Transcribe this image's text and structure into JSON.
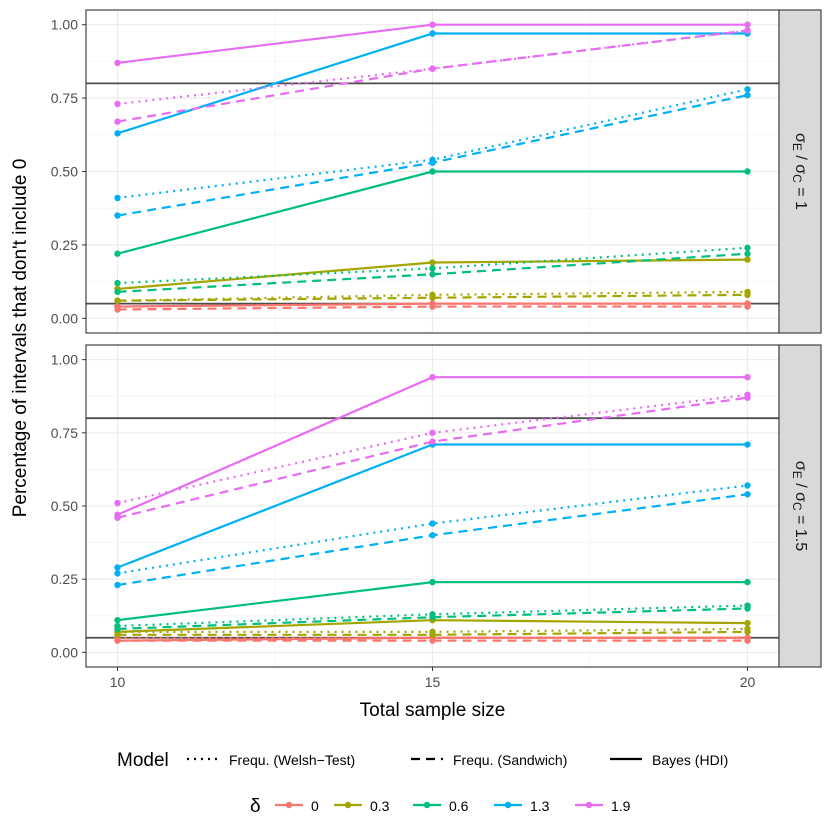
{
  "chart_data": {
    "type": "line",
    "ylabel": "Percentage of intervals that don't include 0",
    "xlabel": "Total sample size",
    "x": [
      10,
      15,
      20
    ],
    "x_ticks": [
      "10",
      "15",
      "20"
    ],
    "xlim": [
      9.5,
      20.5
    ],
    "ylim": [
      -0.05,
      1.05
    ],
    "y_ticks": [
      "0.00",
      "0.25",
      "0.50",
      "0.75",
      "1.00"
    ],
    "reference_lines": [
      0.05,
      0.8
    ],
    "grid": true,
    "legend_position": "bottom",
    "model_legend": {
      "title": "Model",
      "items": [
        {
          "label": "Frequ. (Welsh−Test)",
          "style": "dotted"
        },
        {
          "label": "Frequ. (Sandwich)",
          "style": "dashed"
        },
        {
          "label": "Bayes (HDI)",
          "style": "solid"
        }
      ]
    },
    "delta_legend": {
      "title": "δ",
      "items": [
        {
          "label": "0",
          "color": "#F8766D"
        },
        {
          "label": "0.3",
          "color": "#A3A500"
        },
        {
          "label": "0.6",
          "color": "#00BF7D"
        },
        {
          "label": "1.3",
          "color": "#00B0F6"
        },
        {
          "label": "1.9",
          "color": "#E76BF3"
        }
      ]
    },
    "panels": [
      {
        "strip_main": "σ",
        "strip_sub1": "E",
        "strip_mid": " / σ",
        "strip_sub2": "C",
        "strip_end": " = 1",
        "series": [
          {
            "delta": "0",
            "model": "Frequ. (Welsh−Test)",
            "values": [
              0.04,
              0.05,
              0.05
            ]
          },
          {
            "delta": "0",
            "model": "Frequ. (Sandwich)",
            "values": [
              0.03,
              0.04,
              0.04
            ]
          },
          {
            "delta": "0",
            "model": "Bayes (HDI)",
            "values": [
              0.04,
              0.05,
              0.05
            ]
          },
          {
            "delta": "0.3",
            "model": "Frequ. (Welsh−Test)",
            "values": [
              0.06,
              0.08,
              0.09
            ]
          },
          {
            "delta": "0.3",
            "model": "Frequ. (Sandwich)",
            "values": [
              0.06,
              0.07,
              0.08
            ]
          },
          {
            "delta": "0.3",
            "model": "Bayes (HDI)",
            "values": [
              0.1,
              0.19,
              0.2
            ]
          },
          {
            "delta": "0.6",
            "model": "Frequ. (Welsh−Test)",
            "values": [
              0.12,
              0.17,
              0.24
            ]
          },
          {
            "delta": "0.6",
            "model": "Frequ. (Sandwich)",
            "values": [
              0.09,
              0.15,
              0.22
            ]
          },
          {
            "delta": "0.6",
            "model": "Bayes (HDI)",
            "values": [
              0.22,
              0.5,
              0.5
            ]
          },
          {
            "delta": "1.3",
            "model": "Frequ. (Welsh−Test)",
            "values": [
              0.41,
              0.54,
              0.78
            ]
          },
          {
            "delta": "1.3",
            "model": "Frequ. (Sandwich)",
            "values": [
              0.35,
              0.53,
              0.76
            ]
          },
          {
            "delta": "1.3",
            "model": "Bayes (HDI)",
            "values": [
              0.63,
              0.97,
              0.97
            ]
          },
          {
            "delta": "1.9",
            "model": "Frequ. (Welsh−Test)",
            "values": [
              0.73,
              0.85,
              0.98
            ]
          },
          {
            "delta": "1.9",
            "model": "Frequ. (Sandwich)",
            "values": [
              0.67,
              0.85,
              0.98
            ]
          },
          {
            "delta": "1.9",
            "model": "Bayes (HDI)",
            "values": [
              0.87,
              1.0,
              1.0
            ]
          }
        ]
      },
      {
        "strip_main": "σ",
        "strip_sub1": "E",
        "strip_mid": " / σ",
        "strip_sub2": "C",
        "strip_end": " = 1.5",
        "series": [
          {
            "delta": "0",
            "model": "Frequ. (Welsh−Test)",
            "values": [
              0.05,
              0.05,
              0.05
            ]
          },
          {
            "delta": "0",
            "model": "Frequ. (Sandwich)",
            "values": [
              0.04,
              0.04,
              0.04
            ]
          },
          {
            "delta": "0",
            "model": "Bayes (HDI)",
            "values": [
              0.04,
              0.05,
              0.05
            ]
          },
          {
            "delta": "0.3",
            "model": "Frequ. (Welsh−Test)",
            "values": [
              0.07,
              0.07,
              0.08
            ]
          },
          {
            "delta": "0.3",
            "model": "Frequ. (Sandwich)",
            "values": [
              0.06,
              0.06,
              0.07
            ]
          },
          {
            "delta": "0.3",
            "model": "Bayes (HDI)",
            "values": [
              0.07,
              0.11,
              0.1
            ]
          },
          {
            "delta": "0.6",
            "model": "Frequ. (Welsh−Test)",
            "values": [
              0.09,
              0.13,
              0.16
            ]
          },
          {
            "delta": "0.6",
            "model": "Frequ. (Sandwich)",
            "values": [
              0.08,
              0.12,
              0.15
            ]
          },
          {
            "delta": "0.6",
            "model": "Bayes (HDI)",
            "values": [
              0.11,
              0.24,
              0.24
            ]
          },
          {
            "delta": "1.3",
            "model": "Frequ. (Welsh−Test)",
            "values": [
              0.27,
              0.44,
              0.57
            ]
          },
          {
            "delta": "1.3",
            "model": "Frequ. (Sandwich)",
            "values": [
              0.23,
              0.4,
              0.54
            ]
          },
          {
            "delta": "1.3",
            "model": "Bayes (HDI)",
            "values": [
              0.29,
              0.71,
              0.71
            ]
          },
          {
            "delta": "1.9",
            "model": "Frequ. (Welsh−Test)",
            "values": [
              0.51,
              0.75,
              0.88
            ]
          },
          {
            "delta": "1.9",
            "model": "Frequ. (Sandwich)",
            "values": [
              0.46,
              0.72,
              0.87
            ]
          },
          {
            "delta": "1.9",
            "model": "Bayes (HDI)",
            "values": [
              0.47,
              0.94,
              0.94
            ]
          }
        ]
      }
    ]
  }
}
